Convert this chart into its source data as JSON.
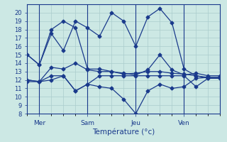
{
  "title": "",
  "xlabel": "Température (°c)",
  "ylabel": "",
  "background_color": "#cce8e4",
  "grid_color": "#aacccc",
  "line_color": "#1a3a8c",
  "ylim": [
    8,
    21
  ],
  "yticks": [
    8,
    9,
    10,
    11,
    12,
    13,
    14,
    15,
    16,
    17,
    18,
    19,
    20
  ],
  "xlim": [
    0,
    16
  ],
  "day_ticks": [
    1,
    5,
    9,
    13
  ],
  "day_labels": [
    "Mer",
    "Sam",
    "Jeu",
    "Ven"
  ],
  "vline_positions": [
    1,
    5,
    9,
    13
  ],
  "lines": [
    {
      "x": [
        0,
        1,
        2,
        3,
        4,
        5,
        6,
        7,
        8,
        9,
        10,
        11,
        12,
        13,
        14,
        15,
        16
      ],
      "y": [
        15.0,
        13.8,
        17.5,
        15.5,
        19.0,
        18.2,
        17.2,
        20.0,
        19.0,
        16.0,
        19.5,
        20.5,
        18.8,
        13.3,
        12.5,
        12.2,
        12.2
      ]
    },
    {
      "x": [
        0,
        1,
        2,
        3,
        4,
        5,
        6,
        7,
        8,
        9,
        10,
        11,
        12,
        13,
        14,
        15,
        16
      ],
      "y": [
        15.0,
        13.8,
        18.0,
        19.0,
        18.2,
        13.3,
        13.3,
        13.0,
        12.8,
        12.6,
        13.2,
        15.0,
        13.2,
        12.6,
        12.8,
        12.5,
        12.5
      ]
    },
    {
      "x": [
        0,
        1,
        2,
        3,
        4,
        5,
        6,
        7,
        8,
        9,
        10,
        11,
        12,
        13,
        14,
        15,
        16
      ],
      "y": [
        12.0,
        11.8,
        13.5,
        13.3,
        14.0,
        13.2,
        13.0,
        13.0,
        12.7,
        12.8,
        13.0,
        13.0,
        12.8,
        12.7,
        12.5,
        12.3,
        12.3
      ]
    },
    {
      "x": [
        0,
        1,
        2,
        3,
        4,
        5,
        6,
        7,
        8,
        9,
        10,
        11,
        12,
        13,
        14,
        15,
        16
      ],
      "y": [
        11.8,
        11.8,
        12.5,
        12.5,
        10.7,
        11.5,
        11.2,
        11.0,
        9.7,
        8.0,
        10.7,
        11.5,
        11.0,
        11.2,
        12.2,
        12.3,
        12.3
      ]
    },
    {
      "x": [
        0,
        1,
        2,
        3,
        4,
        5,
        6,
        7,
        8,
        9,
        10,
        11,
        12,
        13,
        14,
        15,
        16
      ],
      "y": [
        12.0,
        11.8,
        12.0,
        12.5,
        10.7,
        11.5,
        12.5,
        12.5,
        12.5,
        12.5,
        12.5,
        12.5,
        12.5,
        12.5,
        11.2,
        12.2,
        12.2
      ]
    }
  ]
}
